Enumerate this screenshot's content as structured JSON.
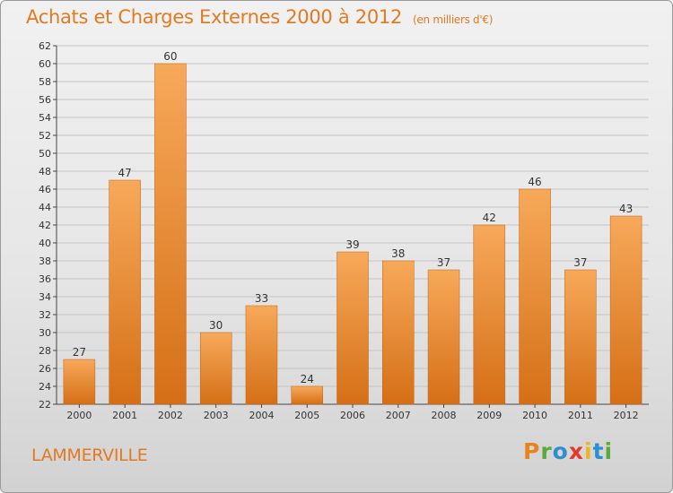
{
  "title": "Achats et Charges Externes 2000 à 2012",
  "unit": "(en milliers d'€)",
  "town": "LAMMERVILLE",
  "logo": "Proxiti",
  "colors": {
    "bar_light": "#f7a95a",
    "bar_dark": "#d56f16",
    "accent": "#e27a22"
  },
  "chart_data": {
    "type": "bar",
    "title": "Achats et Charges Externes 2000 à 2012",
    "subtitle": "(en milliers d'€)",
    "categories": [
      "2000",
      "2001",
      "2002",
      "2003",
      "2004",
      "2005",
      "2006",
      "2007",
      "2008",
      "2009",
      "2010",
      "2011",
      "2012"
    ],
    "values": [
      27,
      47,
      60,
      30,
      33,
      24,
      39,
      38,
      37,
      42,
      46,
      37,
      43
    ],
    "ylim": [
      22,
      62
    ],
    "yticks": [
      22,
      24,
      26,
      28,
      30,
      32,
      34,
      36,
      38,
      40,
      42,
      44,
      46,
      48,
      50,
      52,
      54,
      56,
      58,
      60,
      62
    ],
    "grid": true,
    "legend": "none"
  }
}
